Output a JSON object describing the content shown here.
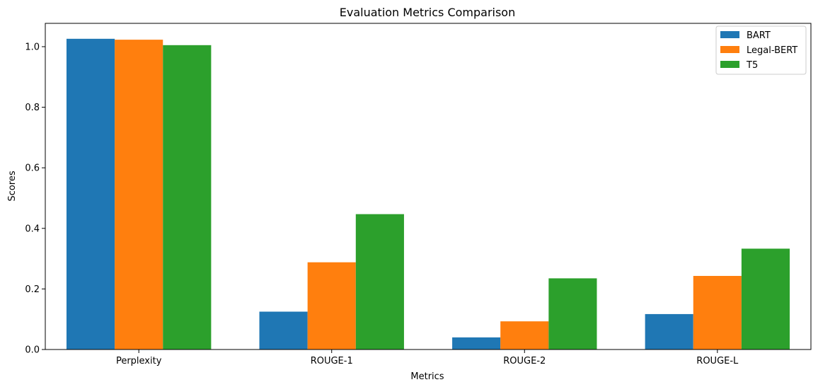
{
  "chart_data": {
    "type": "bar",
    "title": "Evaluation Metrics Comparison",
    "xlabel": "Metrics",
    "ylabel": "Scores",
    "categories": [
      "Perplexity",
      "ROUGE-1",
      "ROUGE-2",
      "ROUGE-L"
    ],
    "series": [
      {
        "name": "BART",
        "color": "#1f77b4",
        "values": [
          1.026,
          0.125,
          0.04,
          0.117
        ]
      },
      {
        "name": "Legal-BERT",
        "color": "#ff7f0e",
        "values": [
          1.023,
          0.288,
          0.093,
          0.243
        ]
      },
      {
        "name": "T5",
        "color": "#2ca02c",
        "values": [
          1.005,
          0.447,
          0.235,
          0.333
        ]
      }
    ],
    "ylim": [
      0,
      1.077
    ],
    "yticks": [
      0.0,
      0.2,
      0.4,
      0.6,
      0.8,
      1.0
    ],
    "ytick_labels": [
      "0.0",
      "0.2",
      "0.4",
      "0.6",
      "0.8",
      "1.0"
    ],
    "grid": false,
    "legend_position": "top-right"
  }
}
